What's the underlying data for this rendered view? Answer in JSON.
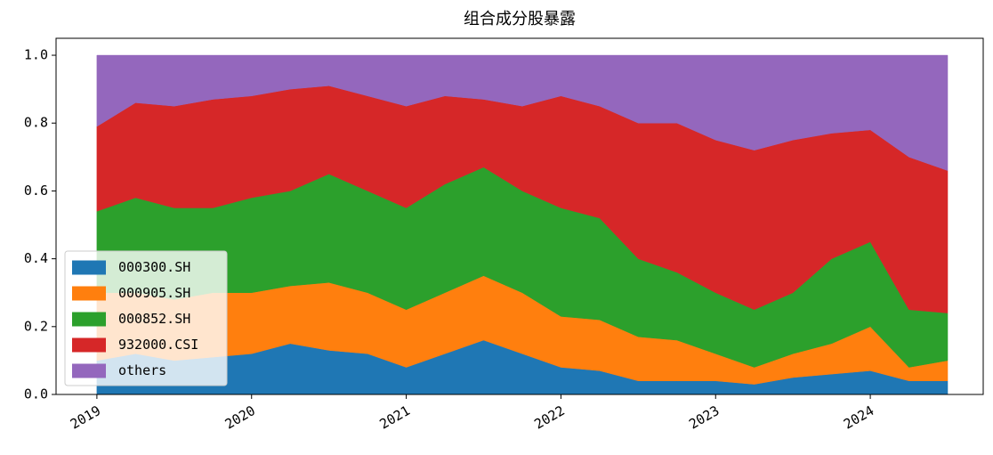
{
  "chart_data": {
    "type": "stacked_area",
    "title": "组合成分股暴露",
    "x": [
      2019,
      2019.25,
      2019.5,
      2019.75,
      2020,
      2020.25,
      2020.5,
      2020.75,
      2021,
      2021.25,
      2021.5,
      2021.75,
      2022,
      2022.25,
      2022.5,
      2022.75,
      2023,
      2023.25,
      2023.5,
      2023.75,
      2024,
      2024.25,
      2024.5
    ],
    "series": [
      {
        "name": "000300.SH",
        "color": "#1f77b4",
        "values": [
          0.1,
          0.12,
          0.1,
          0.11,
          0.12,
          0.15,
          0.13,
          0.12,
          0.08,
          0.12,
          0.16,
          0.12,
          0.08,
          0.07,
          0.04,
          0.04,
          0.04,
          0.03,
          0.05,
          0.06,
          0.07,
          0.04,
          0.04
        ]
      },
      {
        "name": "000905.SH",
        "color": "#ff7f0e",
        "values": [
          0.2,
          0.18,
          0.18,
          0.19,
          0.18,
          0.17,
          0.2,
          0.18,
          0.17,
          0.18,
          0.19,
          0.18,
          0.15,
          0.15,
          0.13,
          0.12,
          0.08,
          0.05,
          0.07,
          0.09,
          0.13,
          0.04,
          0.06
        ]
      },
      {
        "name": "000852.SH",
        "color": "#2ca02c",
        "values": [
          0.24,
          0.28,
          0.27,
          0.25,
          0.28,
          0.28,
          0.32,
          0.3,
          0.3,
          0.32,
          0.32,
          0.3,
          0.32,
          0.3,
          0.23,
          0.2,
          0.18,
          0.17,
          0.18,
          0.25,
          0.25,
          0.17,
          0.14
        ]
      },
      {
        "name": "932000.CSI",
        "color": "#d62728",
        "values": [
          0.25,
          0.28,
          0.3,
          0.32,
          0.3,
          0.3,
          0.26,
          0.28,
          0.3,
          0.26,
          0.2,
          0.25,
          0.33,
          0.33,
          0.4,
          0.44,
          0.45,
          0.47,
          0.45,
          0.37,
          0.33,
          0.45,
          0.42
        ]
      },
      {
        "name": "others",
        "color": "#9467bd",
        "values": [
          0.21,
          0.14,
          0.15,
          0.13,
          0.12,
          0.1,
          0.09,
          0.12,
          0.15,
          0.12,
          0.13,
          0.15,
          0.12,
          0.15,
          0.2,
          0.2,
          0.25,
          0.28,
          0.25,
          0.23,
          0.22,
          0.3,
          0.34
        ]
      }
    ],
    "xlim": [
      2018.736,
      2024.73
    ],
    "xticks": [
      2019,
      2020,
      2021,
      2022,
      2023,
      2024
    ],
    "ylim": [
      0,
      1.05
    ],
    "yticks": [
      {
        "value": 0,
        "label": "0.0"
      },
      0.2,
      0.4,
      0.6,
      0.8,
      {
        "value": 1,
        "label": "1.0"
      }
    ],
    "legend": "lower left"
  }
}
